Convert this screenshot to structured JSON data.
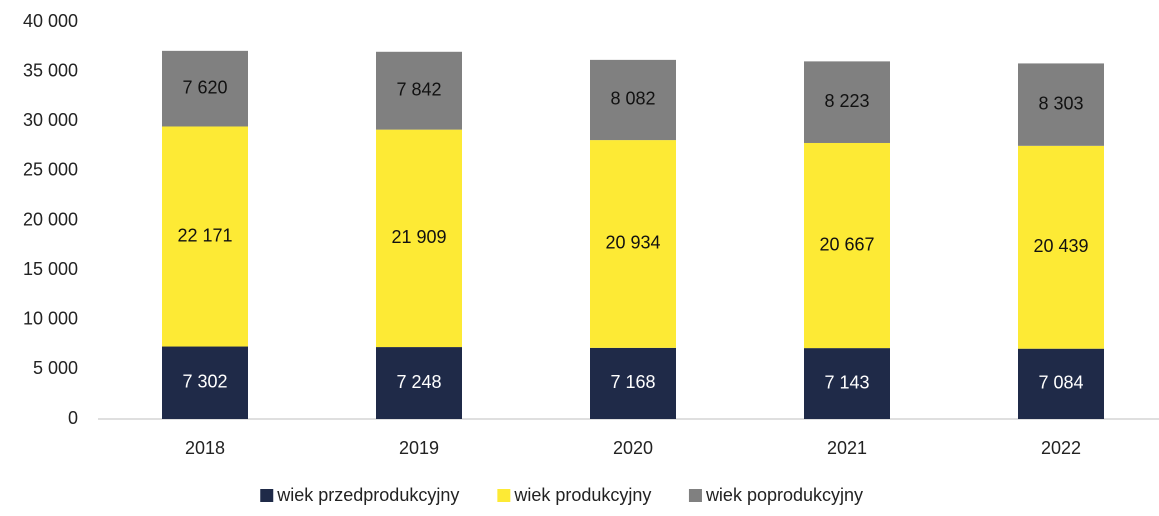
{
  "chart_data": {
    "type": "stacked_bar",
    "categories": [
      "2018",
      "2019",
      "2020",
      "2021",
      "2022"
    ],
    "series": [
      {
        "name": "wiek przedprodukcyjny",
        "color": "#1f2a48",
        "values": [
          7302,
          7248,
          7168,
          7143,
          7084
        ],
        "value_labels": [
          "7 302",
          "7 248",
          "7 168",
          "7 143",
          "7 084"
        ]
      },
      {
        "name": "wiek produkcyjny",
        "color": "#fdea35",
        "values": [
          22171,
          21909,
          20934,
          20667,
          20439
        ],
        "value_labels": [
          "22 171",
          "21 909",
          "20 934",
          "20 667",
          "20 439"
        ]
      },
      {
        "name": "wiek poprodukcyjny",
        "color": "#808080",
        "values": [
          7620,
          7842,
          8082,
          8223,
          8303
        ],
        "value_labels": [
          "7 620",
          "7 842",
          "8 082",
          "8 223",
          "8 303"
        ]
      }
    ],
    "ylim": [
      0,
      40000
    ],
    "yticks": [
      0,
      {
        "value": 5000,
        "label": "5 000"
      },
      {
        "value": 10000,
        "label": "10 000"
      },
      {
        "value": 15000,
        "label": "15 000"
      },
      {
        "value": 20000,
        "label": "20 000"
      },
      {
        "value": 25000,
        "label": "25 000"
      },
      {
        "value": 30000,
        "label": "30 000"
      },
      {
        "value": 35000,
        "label": "35 000"
      },
      {
        "value": 40000,
        "label": "40 000"
      }
    ],
    "grid": false,
    "legend": "bottom"
  }
}
